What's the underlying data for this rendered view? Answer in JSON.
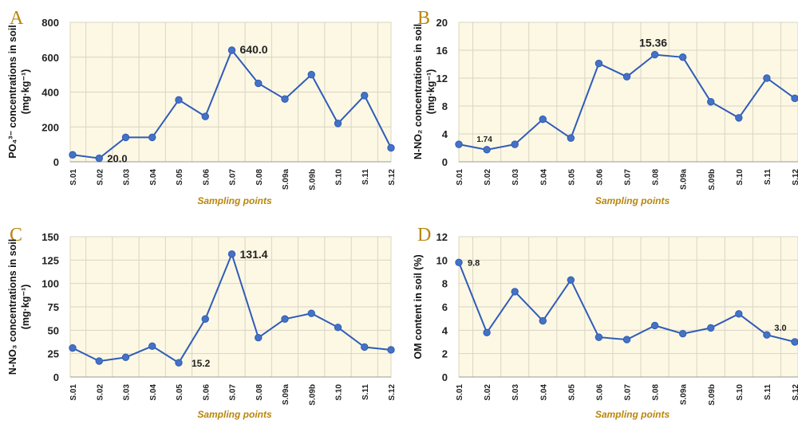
{
  "chart_data": [
    {
      "type": "line",
      "panel": "A",
      "categories": [
        "S.01",
        "S.02",
        "S.03",
        "S.04",
        "S.05",
        "S.06",
        "S.07",
        "S.08",
        "S.09a",
        "S.09b",
        "S.10",
        "S.11",
        "S.12"
      ],
      "values": [
        40,
        20,
        140,
        140,
        355,
        260,
        640,
        450,
        360,
        500,
        220,
        380,
        80
      ],
      "ylim": [
        0,
        800
      ],
      "yticks": [
        0,
        200,
        400,
        600,
        800
      ],
      "xlabel": "Sampling points",
      "ylabel_line1": "PO₄³⁻ concentrations in soil",
      "ylabel_line2": "(mg·kg⁻¹)",
      "annotations": [
        {
          "index": 1,
          "text": "20.0"
        },
        {
          "index": 6,
          "text": "640.0"
        }
      ],
      "grid": true
    },
    {
      "type": "line",
      "panel": "B",
      "categories": [
        "S.01",
        "S.02",
        "S.03",
        "S.04",
        "S.05",
        "S.06",
        "S.07",
        "S.08",
        "S.09a",
        "S.09b",
        "S.10",
        "S.11",
        "S.12"
      ],
      "values": [
        2.5,
        1.74,
        2.5,
        6.1,
        3.4,
        14.1,
        12.2,
        15.36,
        15.0,
        8.6,
        6.3,
        12.0,
        9.1
      ],
      "ylim": [
        0,
        20
      ],
      "yticks": [
        0,
        4,
        8,
        12,
        16,
        20
      ],
      "xlabel": "Sampling points",
      "ylabel_line1": "N-NO₂ concentrations in soil",
      "ylabel_line2": "(mg·kg⁻¹)",
      "annotations": [
        {
          "index": 1,
          "text": "1.74"
        },
        {
          "index": 7,
          "text": "15.36"
        }
      ],
      "grid": true
    },
    {
      "type": "line",
      "panel": "C",
      "categories": [
        "S.01",
        "S.02",
        "S.03",
        "S.04",
        "S.05",
        "S.06",
        "S.07",
        "S.08",
        "S.09a",
        "S.09b",
        "S.10",
        "S.11",
        "S.12"
      ],
      "values": [
        31,
        17,
        21,
        33,
        15.2,
        62,
        131.4,
        42,
        62,
        68,
        53,
        32,
        29
      ],
      "ylim": [
        0,
        150
      ],
      "yticks": [
        0,
        25,
        50,
        75,
        100,
        125,
        150
      ],
      "xlabel": "Sampling points",
      "ylabel_line1": "N-NO₃ concentrations in soil",
      "ylabel_line2": "(mg·kg⁻¹)",
      "annotations": [
        {
          "index": 4,
          "text": "15.2"
        },
        {
          "index": 6,
          "text": "131.4"
        }
      ],
      "grid": true
    },
    {
      "type": "line",
      "panel": "D",
      "categories": [
        "S.01",
        "S.02",
        "S.03",
        "S.04",
        "S.05",
        "S.06",
        "S.07",
        "S.08",
        "S.09a",
        "S.09b",
        "S.10",
        "S.11",
        "S.12"
      ],
      "values": [
        9.8,
        3.8,
        7.3,
        4.8,
        8.3,
        3.4,
        3.2,
        4.4,
        3.7,
        4.2,
        5.4,
        3.6,
        3.0
      ],
      "ylim": [
        0,
        12
      ],
      "yticks": [
        0,
        2,
        4,
        6,
        8,
        10,
        12
      ],
      "xlabel": "Sampling points",
      "ylabel_line1": "OM content in soil (%)",
      "ylabel_line2": "",
      "annotations": [
        {
          "index": 0,
          "text": "9.8"
        },
        {
          "index": 12,
          "text": "3.0"
        }
      ],
      "grid": true
    }
  ],
  "colors": {
    "line": "#2f5cb8",
    "marker": "#4472c4",
    "plot_background": "#fdf8e4",
    "panel_letter": "#b8860b",
    "xlabel": "#b8860b"
  }
}
